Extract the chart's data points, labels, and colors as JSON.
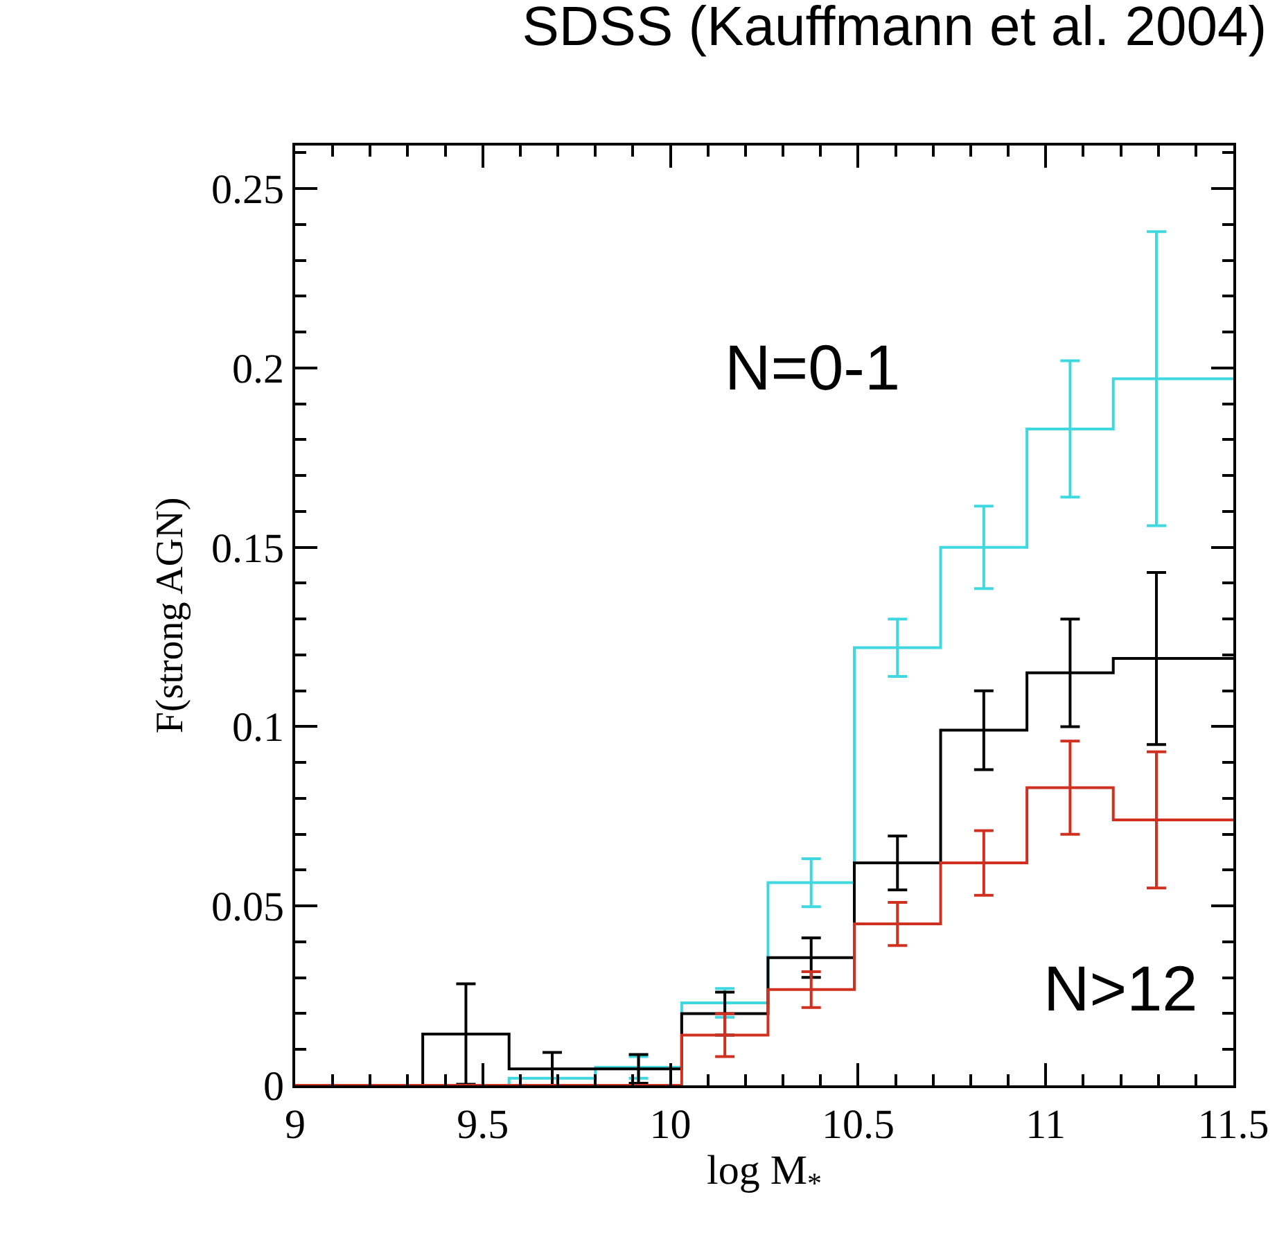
{
  "chart_data": {
    "type": "step",
    "title": "SDSS (Kauffmann et al. 2004)",
    "xlabel": "log M$_{*}$",
    "ylabel": "F(strong AGN)",
    "x": [
      9.0,
      9.225,
      9.455,
      9.685,
      9.915,
      10.145,
      10.375,
      10.605,
      10.835,
      11.065,
      11.295,
      11.5
    ],
    "series": [
      {
        "name": "N=0-1",
        "color": "#40d8e0",
        "values": [
          0,
          0,
          0,
          0.002,
          0.005,
          0.023,
          0.0565,
          0.122,
          0.15,
          0.183,
          0.197,
          0.197
        ],
        "errors": [
          null,
          null,
          null,
          null,
          0.003,
          0.004,
          0.0067,
          0.008,
          0.0115,
          0.019,
          0.041,
          null
        ]
      },
      {
        "color": "#000000",
        "values": [
          0,
          0,
          0.0143,
          0.0046,
          0.0046,
          0.02,
          0.0356,
          0.062,
          0.099,
          0.115,
          0.119,
          0.119
        ],
        "errors": [
          null,
          null,
          0.014,
          0.0046,
          0.004,
          0.006,
          0.0055,
          0.0075,
          0.011,
          0.015,
          0.024,
          null
        ]
      },
      {
        "name": "N>12",
        "color": "#d03020",
        "values": [
          0,
          0,
          0,
          0,
          0,
          0.014,
          0.0267,
          0.045,
          0.062,
          0.083,
          0.074,
          0.074
        ],
        "errors": [
          null,
          null,
          null,
          null,
          null,
          0.006,
          0.005,
          0.006,
          0.009,
          0.013,
          0.019,
          null
        ]
      }
    ],
    "xlim": [
      9,
      11.5
    ],
    "xticks": [
      9,
      9.5,
      10,
      10.5,
      11,
      11.5
    ],
    "ylim": [
      0,
      0.262
    ],
    "yticks": [
      0,
      0.05,
      0.1,
      0.15,
      0.2,
      0.25
    ]
  }
}
